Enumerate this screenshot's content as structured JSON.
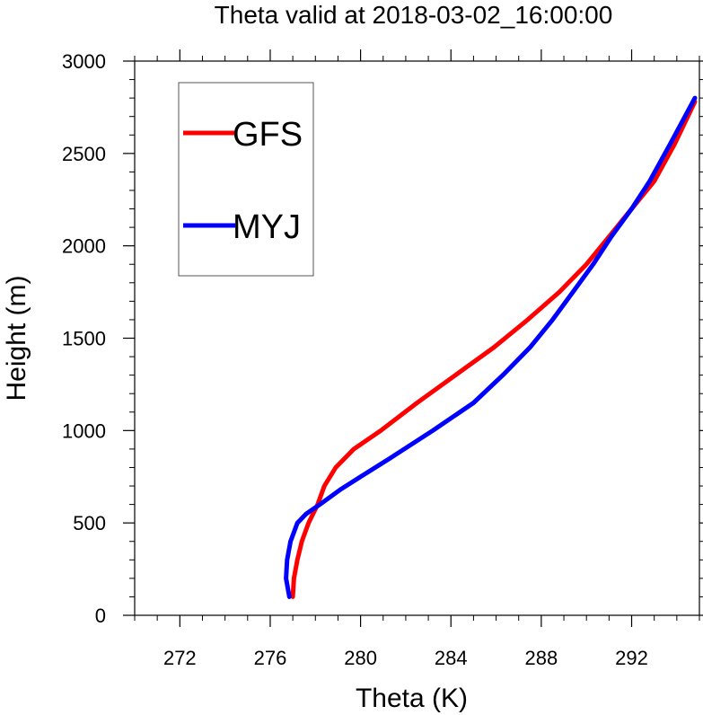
{
  "chart_data": {
    "type": "line",
    "title": "Theta valid at 2018-03-02_16:00:00",
    "xlabel": "Theta (K)",
    "ylabel": "Height (m)",
    "xlim": [
      270,
      295
    ],
    "ylim": [
      0,
      3000
    ],
    "xticks": [
      272,
      276,
      280,
      284,
      288,
      292
    ],
    "yticks": [
      0,
      500,
      1000,
      1500,
      2000,
      2500,
      3000
    ],
    "x_minor_step": 1,
    "y_minor_step": 100,
    "grid": false,
    "legend_position": "top-left",
    "series": [
      {
        "name": "GFS",
        "color": "#ff0000",
        "points": [
          [
            277.0,
            100
          ],
          [
            277.05,
            200
          ],
          [
            277.2,
            300
          ],
          [
            277.4,
            400
          ],
          [
            277.7,
            500
          ],
          [
            278.1,
            600
          ],
          [
            278.4,
            700
          ],
          [
            278.9,
            800
          ],
          [
            279.7,
            900
          ],
          [
            280.9,
            1000
          ],
          [
            282.5,
            1150
          ],
          [
            284.2,
            1300
          ],
          [
            285.9,
            1450
          ],
          [
            287.4,
            1600
          ],
          [
            288.8,
            1750
          ],
          [
            290.0,
            1900
          ],
          [
            291.0,
            2050
          ],
          [
            292.0,
            2200
          ],
          [
            293.0,
            2350
          ],
          [
            293.9,
            2550
          ],
          [
            294.8,
            2780
          ]
        ]
      },
      {
        "name": "MYJ",
        "color": "#0000ff",
        "points": [
          [
            276.85,
            100
          ],
          [
            276.7,
            200
          ],
          [
            276.75,
            300
          ],
          [
            276.9,
            400
          ],
          [
            277.2,
            500
          ],
          [
            277.6,
            550
          ],
          [
            278.2,
            600
          ],
          [
            279.1,
            680
          ],
          [
            280.0,
            750
          ],
          [
            281.3,
            850
          ],
          [
            283.2,
            1000
          ],
          [
            285.0,
            1150
          ],
          [
            286.3,
            1300
          ],
          [
            287.5,
            1450
          ],
          [
            288.5,
            1600
          ],
          [
            289.4,
            1750
          ],
          [
            290.3,
            1900
          ],
          [
            291.1,
            2050
          ],
          [
            292.0,
            2200
          ],
          [
            292.8,
            2350
          ],
          [
            293.7,
            2550
          ],
          [
            294.8,
            2800
          ]
        ]
      }
    ]
  }
}
